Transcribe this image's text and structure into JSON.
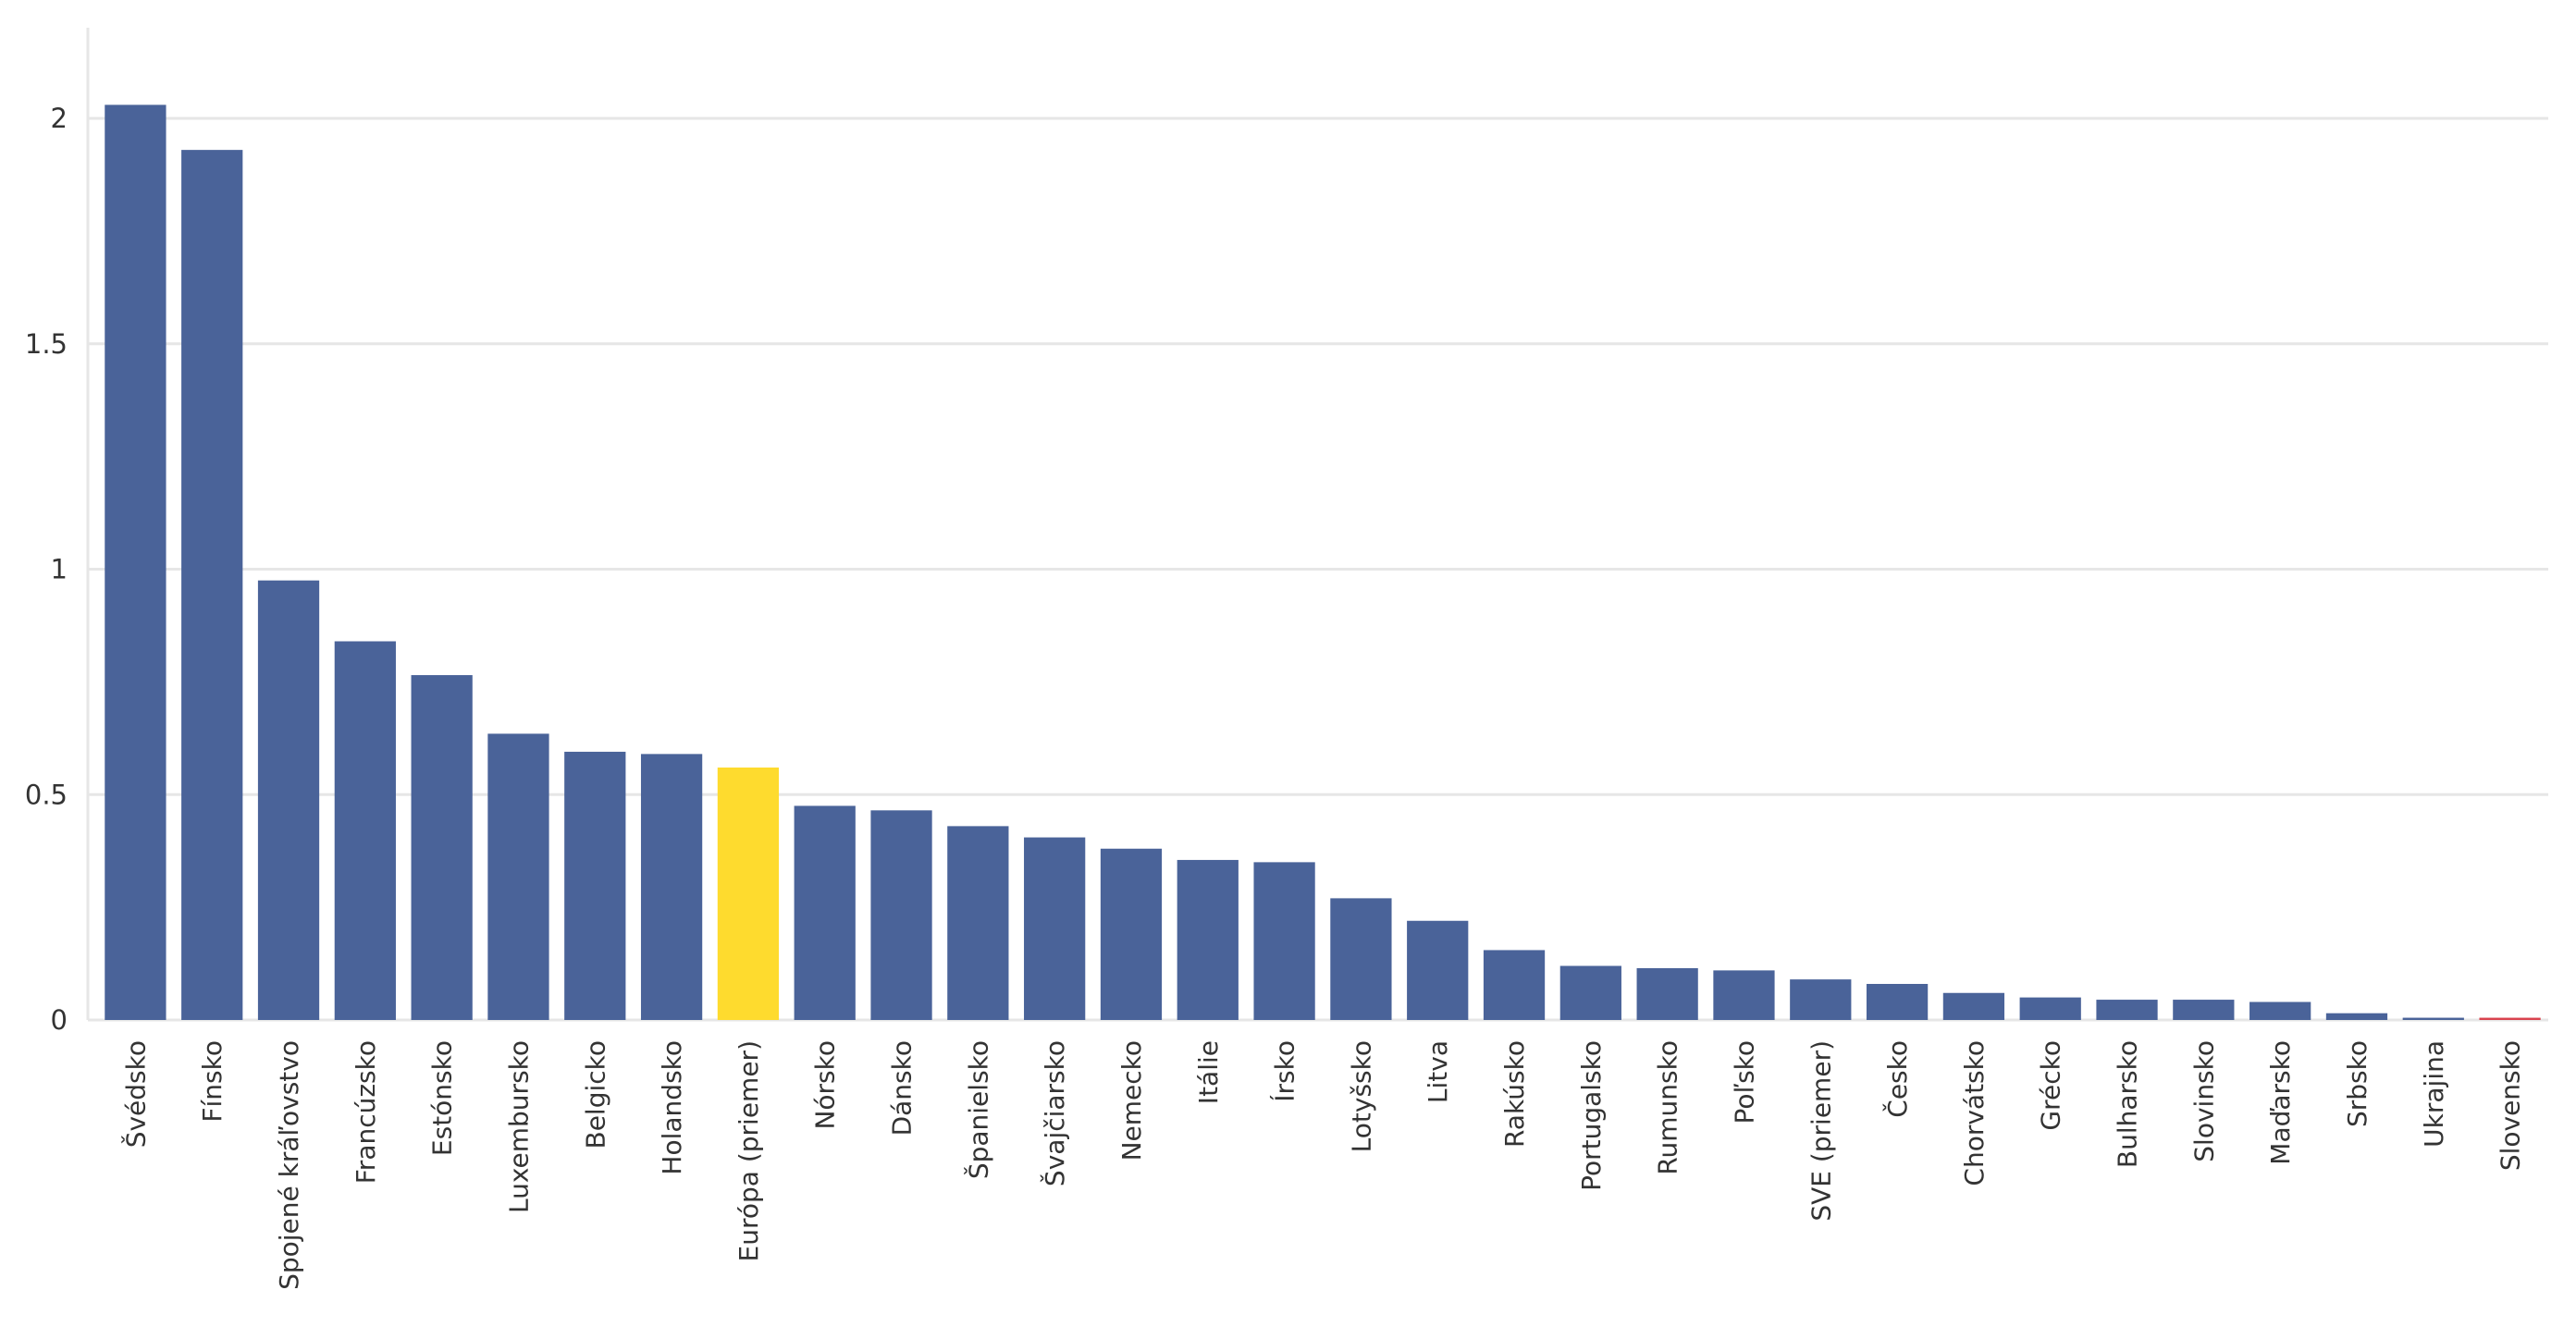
{
  "chart_data": {
    "type": "bar",
    "title": "",
    "xlabel": "",
    "ylabel": "",
    "ylim": [
      0,
      2.2
    ],
    "yticks": [
      0,
      0.5,
      1,
      1.5,
      2
    ],
    "ytick_labels": [
      "0",
      "0.5",
      "1",
      "1.5",
      "2"
    ],
    "grid": true,
    "categories": [
      "Švédsko",
      "Fínsko",
      "Spojené kráľovstvo",
      "Francúzsko",
      "Estónsko",
      "Luxembursko",
      "Belgicko",
      "Holandsko",
      "Európa (priemer)",
      "Nórsko",
      "Dánsko",
      "Španielsko",
      "Švajčiarsko",
      "Nemecko",
      "Itálie",
      "Írsko",
      "Lotyšsko",
      "Litva",
      "Rakúsko",
      "Portugalsko",
      "Rumunsko",
      "Poľsko",
      "SVE (priemer)",
      "Česko",
      "Chorvátsko",
      "Grécko",
      "Bulharsko",
      "Slovinsko",
      "Maďarsko",
      "Srbsko",
      "Ukrajina",
      "Slovensko"
    ],
    "values": [
      2.03,
      1.93,
      0.975,
      0.84,
      0.765,
      0.635,
      0.595,
      0.59,
      0.56,
      0.475,
      0.465,
      0.43,
      0.405,
      0.38,
      0.355,
      0.35,
      0.27,
      0.22,
      0.155,
      0.12,
      0.115,
      0.11,
      0.09,
      0.08,
      0.06,
      0.05,
      0.045,
      0.045,
      0.04,
      0.015,
      0.005,
      0.005
    ],
    "colors": {
      "default": "#4a6399",
      "highlight_europe": "#fedb2e",
      "highlight_slovakia": "#d9434e"
    },
    "highlights": {
      "Európa (priemer)": "highlight_europe",
      "Slovensko": "highlight_slovakia"
    }
  }
}
